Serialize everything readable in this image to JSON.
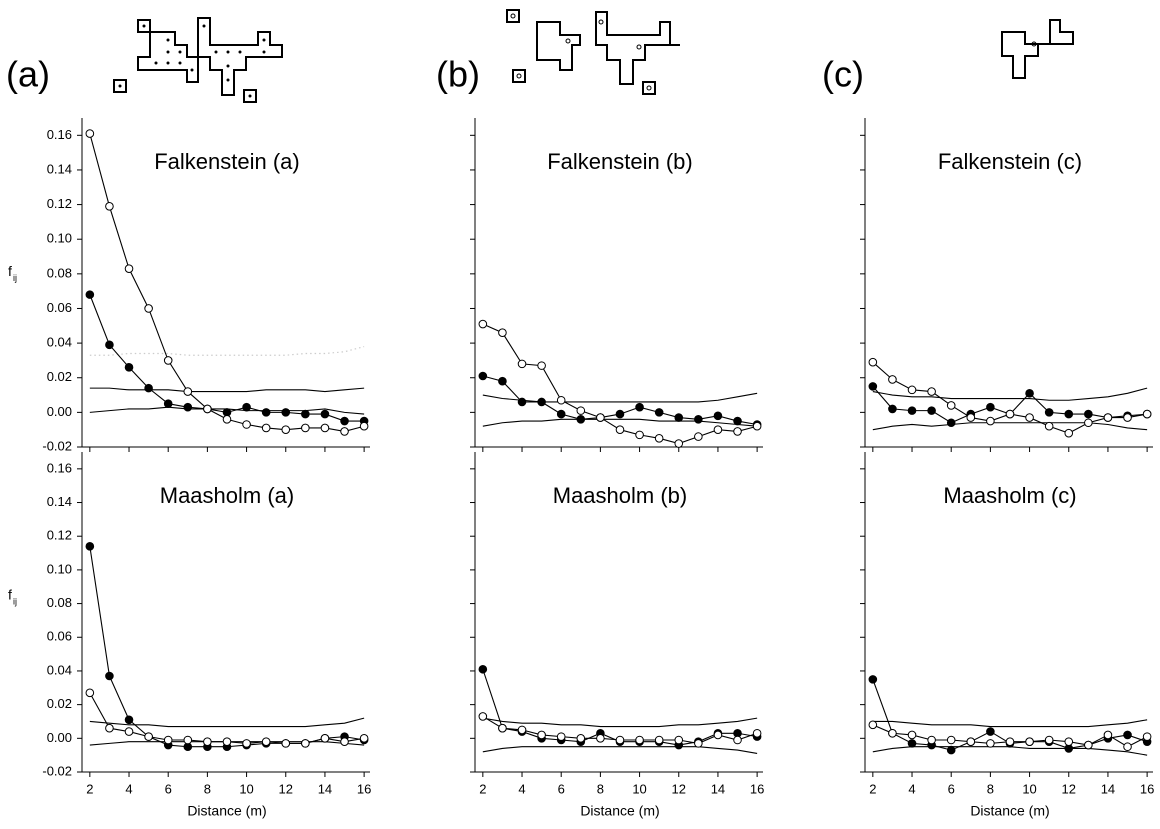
{
  "figure_labels": [
    "(a)",
    "(b)",
    "(c)"
  ],
  "chart_data": [
    {
      "type": "line",
      "title": "Falkenstein (a)",
      "ylabel": "f",
      "ylabel_sub": "ij",
      "x": [
        2,
        3,
        4,
        5,
        6,
        7,
        8,
        9,
        10,
        11,
        12,
        13,
        14,
        15,
        16
      ],
      "xlim": [
        1.6,
        16.3
      ],
      "xticks": [
        2,
        4,
        6,
        8,
        10,
        12,
        14,
        16
      ],
      "xtick_labels": false,
      "ylim": [
        -0.02,
        0.17
      ],
      "yticks": [
        -0.02,
        {
          "value": 0,
          "label": "0.00"
        },
        0.02,
        0.04,
        0.06,
        0.08,
        {
          "value": 0.1,
          "label": "0.10"
        },
        0.12,
        0.14,
        0.16
      ],
      "ytick_labels": true,
      "series": [
        {
          "color": "#000000",
          "marker": "none",
          "dash": false,
          "values": [
            0.014,
            0.014,
            0.013,
            0.013,
            0.013,
            0.012,
            0.012,
            0.012,
            0.012,
            0.013,
            0.013,
            0.013,
            0.012,
            0.013,
            0.014
          ]
        },
        {
          "color": "#000000",
          "marker": "none",
          "dash": false,
          "values": [
            0.0,
            0.001,
            0.002,
            0.002,
            0.003,
            0.002,
            0.002,
            0.002,
            0.001,
            0.001,
            0.001,
            0.001,
            0.002,
            0.0,
            -0.001
          ]
        },
        {
          "color": "#cccccc",
          "marker": "none",
          "dash": true,
          "values": [
            0.033,
            0.033,
            0.034,
            0.034,
            0.034,
            0.033,
            0.033,
            0.033,
            0.033,
            0.033,
            0.033,
            0.034,
            0.034,
            0.035,
            0.038
          ]
        },
        {
          "color": "#000000",
          "marker": "filled",
          "dash": false,
          "values": [
            0.068,
            0.039,
            0.026,
            0.014,
            0.005,
            0.003,
            0.002,
            0.0,
            0.003,
            0.0,
            0.0,
            -0.001,
            -0.001,
            -0.005,
            -0.005
          ]
        },
        {
          "color": "#000000",
          "marker": "open",
          "dash": false,
          "values": [
            0.161,
            0.119,
            0.083,
            0.06,
            0.03,
            0.012,
            0.002,
            -0.004,
            -0.007,
            -0.009,
            -0.01,
            -0.009,
            -0.009,
            -0.011,
            -0.008
          ]
        }
      ]
    },
    {
      "type": "line",
      "title": "Falkenstein (b)",
      "x": [
        2,
        3,
        4,
        5,
        6,
        7,
        8,
        9,
        10,
        11,
        12,
        13,
        14,
        15,
        16
      ],
      "xlim": [
        1.6,
        16.3
      ],
      "xticks": [
        2,
        4,
        6,
        8,
        10,
        12,
        14,
        16
      ],
      "xtick_labels": false,
      "ylim": [
        -0.02,
        0.17
      ],
      "yticks": [
        -0.02,
        0,
        0.02,
        0.04,
        0.06,
        0.08,
        0.1,
        0.12,
        0.14,
        0.16
      ],
      "ytick_labels": false,
      "series": [
        {
          "color": "#000000",
          "marker": "none",
          "dash": false,
          "values": [
            0.01,
            0.008,
            0.007,
            0.006,
            0.006,
            0.006,
            0.006,
            0.006,
            0.006,
            0.006,
            0.006,
            0.006,
            0.007,
            0.009,
            0.011
          ]
        },
        {
          "color": "#000000",
          "marker": "none",
          "dash": false,
          "values": [
            -0.008,
            -0.006,
            -0.005,
            -0.005,
            -0.004,
            -0.004,
            -0.004,
            -0.004,
            -0.004,
            -0.005,
            -0.005,
            -0.005,
            -0.006,
            -0.007,
            -0.008
          ]
        },
        {
          "color": "#000000",
          "marker": "filled",
          "dash": false,
          "values": [
            0.021,
            0.018,
            0.006,
            0.006,
            -0.001,
            -0.004,
            -0.003,
            -0.001,
            0.003,
            0.0,
            -0.003,
            -0.004,
            -0.002,
            -0.005,
            -0.007
          ]
        },
        {
          "color": "#000000",
          "marker": "open",
          "dash": false,
          "values": [
            0.051,
            0.046,
            0.028,
            0.027,
            0.007,
            0.001,
            -0.003,
            -0.01,
            -0.013,
            -0.015,
            -0.018,
            -0.014,
            -0.01,
            -0.011,
            -0.008
          ]
        }
      ]
    },
    {
      "type": "line",
      "title": "Falkenstein (c)",
      "x": [
        2,
        3,
        4,
        5,
        6,
        7,
        8,
        9,
        10,
        11,
        12,
        13,
        14,
        15,
        16
      ],
      "xlim": [
        1.6,
        16.3
      ],
      "xticks": [
        2,
        4,
        6,
        8,
        10,
        12,
        14,
        16
      ],
      "xtick_labels": false,
      "ylim": [
        -0.02,
        0.17
      ],
      "yticks": [
        -0.02,
        0,
        0.02,
        0.04,
        0.06,
        0.08,
        0.1,
        0.12,
        0.14,
        0.16
      ],
      "ytick_labels": false,
      "series": [
        {
          "color": "#000000",
          "marker": "none",
          "dash": false,
          "values": [
            0.012,
            0.01,
            0.009,
            0.009,
            0.008,
            0.008,
            0.008,
            0.008,
            0.008,
            0.007,
            0.007,
            0.008,
            0.009,
            0.011,
            0.014
          ]
        },
        {
          "color": "#000000",
          "marker": "none",
          "dash": false,
          "values": [
            -0.01,
            -0.008,
            -0.007,
            -0.008,
            -0.007,
            -0.006,
            -0.006,
            -0.006,
            -0.006,
            -0.006,
            -0.006,
            -0.006,
            -0.007,
            -0.009,
            -0.01
          ]
        },
        {
          "color": "#000000",
          "marker": "filled",
          "dash": false,
          "values": [
            0.015,
            0.002,
            0.001,
            0.001,
            -0.006,
            -0.001,
            0.003,
            -0.001,
            0.011,
            0.0,
            -0.001,
            -0.001,
            -0.003,
            -0.002,
            -0.001
          ]
        },
        {
          "color": "#000000",
          "marker": "open",
          "dash": false,
          "values": [
            0.029,
            0.019,
            0.013,
            0.012,
            0.004,
            -0.003,
            -0.005,
            -0.001,
            -0.003,
            -0.008,
            -0.012,
            -0.006,
            -0.003,
            -0.003,
            -0.001
          ]
        }
      ]
    },
    {
      "type": "line",
      "title": "Maasholm (a)",
      "ylabel": "f",
      "ylabel_sub": "ij",
      "xlabel": "Distance (m)",
      "x": [
        2,
        3,
        4,
        5,
        6,
        7,
        8,
        9,
        10,
        11,
        12,
        13,
        14,
        15,
        16
      ],
      "xlim": [
        1.6,
        16.3
      ],
      "xticks": [
        2,
        4,
        6,
        8,
        10,
        12,
        14,
        16
      ],
      "xtick_labels": true,
      "ylim": [
        -0.02,
        0.17
      ],
      "yticks": [
        -0.02,
        {
          "value": 0,
          "label": "0.00"
        },
        0.02,
        0.04,
        0.06,
        0.08,
        {
          "value": 0.1,
          "label": "0.10"
        },
        0.12,
        0.14,
        0.16
      ],
      "ytick_labels": true,
      "series": [
        {
          "color": "#000000",
          "marker": "none",
          "dash": false,
          "values": [
            0.01,
            0.009,
            0.008,
            0.008,
            0.007,
            0.007,
            0.007,
            0.007,
            0.007,
            0.007,
            0.007,
            0.007,
            0.008,
            0.009,
            0.012
          ]
        },
        {
          "color": "#000000",
          "marker": "none",
          "dash": false,
          "values": [
            -0.004,
            -0.003,
            -0.002,
            -0.002,
            -0.002,
            -0.002,
            -0.002,
            -0.002,
            -0.002,
            -0.002,
            -0.002,
            -0.002,
            -0.002,
            -0.003,
            -0.004
          ]
        },
        {
          "color": "#000000",
          "marker": "filled",
          "dash": false,
          "values": [
            0.114,
            0.037,
            0.011,
            0.001,
            -0.004,
            -0.005,
            -0.005,
            -0.005,
            -0.004,
            -0.003,
            -0.003,
            -0.003,
            0.0,
            0.001,
            -0.001
          ]
        },
        {
          "color": "#000000",
          "marker": "open",
          "dash": false,
          "values": [
            0.027,
            0.006,
            0.004,
            0.001,
            -0.001,
            -0.001,
            -0.002,
            -0.002,
            -0.003,
            -0.002,
            -0.003,
            -0.003,
            0.0,
            -0.002,
            0.0
          ]
        }
      ]
    },
    {
      "type": "line",
      "title": "Maasholm (b)",
      "xlabel": "Distance (m)",
      "x": [
        2,
        3,
        4,
        5,
        6,
        7,
        8,
        9,
        10,
        11,
        12,
        13,
        14,
        15,
        16
      ],
      "xlim": [
        1.6,
        16.3
      ],
      "xticks": [
        2,
        4,
        6,
        8,
        10,
        12,
        14,
        16
      ],
      "xtick_labels": true,
      "ylim": [
        -0.02,
        0.17
      ],
      "yticks": [
        -0.02,
        0,
        0.02,
        0.04,
        0.06,
        0.08,
        0.1,
        0.12,
        0.14,
        0.16
      ],
      "ytick_labels": false,
      "series": [
        {
          "color": "#000000",
          "marker": "none",
          "dash": false,
          "values": [
            0.012,
            0.01,
            0.009,
            0.009,
            0.008,
            0.008,
            0.007,
            0.007,
            0.007,
            0.007,
            0.008,
            0.008,
            0.009,
            0.01,
            0.012
          ]
        },
        {
          "color": "#000000",
          "marker": "none",
          "dash": false,
          "values": [
            -0.008,
            -0.006,
            -0.005,
            -0.005,
            -0.005,
            -0.005,
            -0.005,
            -0.005,
            -0.005,
            -0.005,
            -0.005,
            -0.005,
            -0.006,
            -0.007,
            -0.009
          ]
        },
        {
          "color": "#000000",
          "marker": "filled",
          "dash": false,
          "values": [
            0.041,
            0.006,
            0.004,
            0.0,
            -0.001,
            -0.002,
            0.003,
            -0.002,
            -0.002,
            -0.002,
            -0.004,
            -0.002,
            0.003,
            0.003,
            0.001
          ]
        },
        {
          "color": "#000000",
          "marker": "open",
          "dash": false,
          "values": [
            0.013,
            0.006,
            0.005,
            0.002,
            0.001,
            0.0,
            0.0,
            -0.001,
            -0.001,
            -0.001,
            -0.001,
            -0.003,
            0.002,
            -0.001,
            0.003
          ]
        }
      ]
    },
    {
      "type": "line",
      "title": "Maasholm (c)",
      "xlabel": "Distance (m)",
      "x": [
        2,
        3,
        4,
        5,
        6,
        7,
        8,
        9,
        10,
        11,
        12,
        13,
        14,
        15,
        16
      ],
      "xlim": [
        1.6,
        16.3
      ],
      "xticks": [
        2,
        4,
        6,
        8,
        10,
        12,
        14,
        16
      ],
      "xtick_labels": true,
      "ylim": [
        -0.02,
        0.17
      ],
      "yticks": [
        -0.02,
        0,
        0.02,
        0.04,
        0.06,
        0.08,
        0.1,
        0.12,
        0.14,
        0.16
      ],
      "ytick_labels": false,
      "series": [
        {
          "color": "#000000",
          "marker": "none",
          "dash": false,
          "values": [
            0.01,
            0.01,
            0.009,
            0.008,
            0.008,
            0.008,
            0.007,
            0.007,
            0.007,
            0.007,
            0.007,
            0.007,
            0.008,
            0.009,
            0.011
          ]
        },
        {
          "color": "#000000",
          "marker": "none",
          "dash": false,
          "values": [
            -0.008,
            -0.006,
            -0.005,
            -0.005,
            -0.005,
            -0.005,
            -0.005,
            -0.005,
            -0.006,
            -0.006,
            -0.006,
            -0.006,
            -0.007,
            -0.008,
            -0.01
          ]
        },
        {
          "color": "#000000",
          "marker": "filled",
          "dash": false,
          "values": [
            0.035,
            0.003,
            -0.003,
            -0.004,
            -0.007,
            -0.002,
            0.004,
            -0.003,
            -0.002,
            -0.002,
            -0.006,
            -0.004,
            0.0,
            0.002,
            -0.002
          ]
        },
        {
          "color": "#000000",
          "marker": "open",
          "dash": false,
          "values": [
            0.008,
            0.003,
            0.002,
            -0.001,
            -0.001,
            -0.002,
            -0.003,
            -0.002,
            -0.002,
            -0.001,
            -0.002,
            -0.004,
            0.002,
            -0.005,
            0.001
          ]
        }
      ]
    }
  ]
}
